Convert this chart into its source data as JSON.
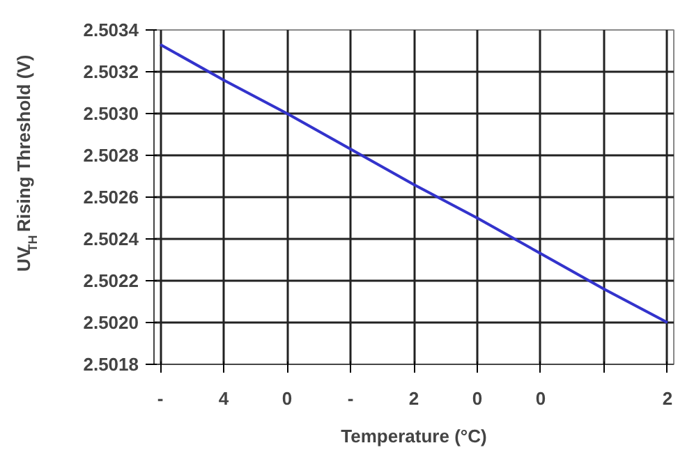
{
  "chart_data": {
    "type": "line",
    "xlabel": "Temperature (°C)",
    "ylabel": "UV$_{TH}$ Rising Threshold (V)",
    "categories": [
      "-",
      "4",
      "0",
      "-",
      "2",
      "0",
      "0",
      null,
      "2"
    ],
    "series": [
      {
        "color": "#3333cc",
        "values": [
          2.50333,
          2.50316,
          2.503,
          2.50283,
          2.50266,
          2.5025,
          2.50233,
          2.50216,
          2.502
        ]
      }
    ],
    "ylim": [
      2.5018,
      2.5034
    ],
    "yticks": [
      {
        "value": 2.5018,
        "label": "2.5018"
      },
      {
        "value": 2.502,
        "label": "2.5020"
      },
      {
        "value": 2.5022,
        "label": "2.5022"
      },
      {
        "value": 2.5024,
        "label": "2.5024"
      },
      {
        "value": 2.5026,
        "label": "2.5026"
      },
      {
        "value": 2.5028,
        "label": "2.5028"
      },
      {
        "value": 2.503,
        "label": "2.5030"
      },
      {
        "value": 2.5032,
        "label": "2.5032"
      },
      {
        "value": 2.5034,
        "label": "2.5034"
      }
    ],
    "grid": true,
    "marker": "none",
    "line_style": "solid"
  }
}
